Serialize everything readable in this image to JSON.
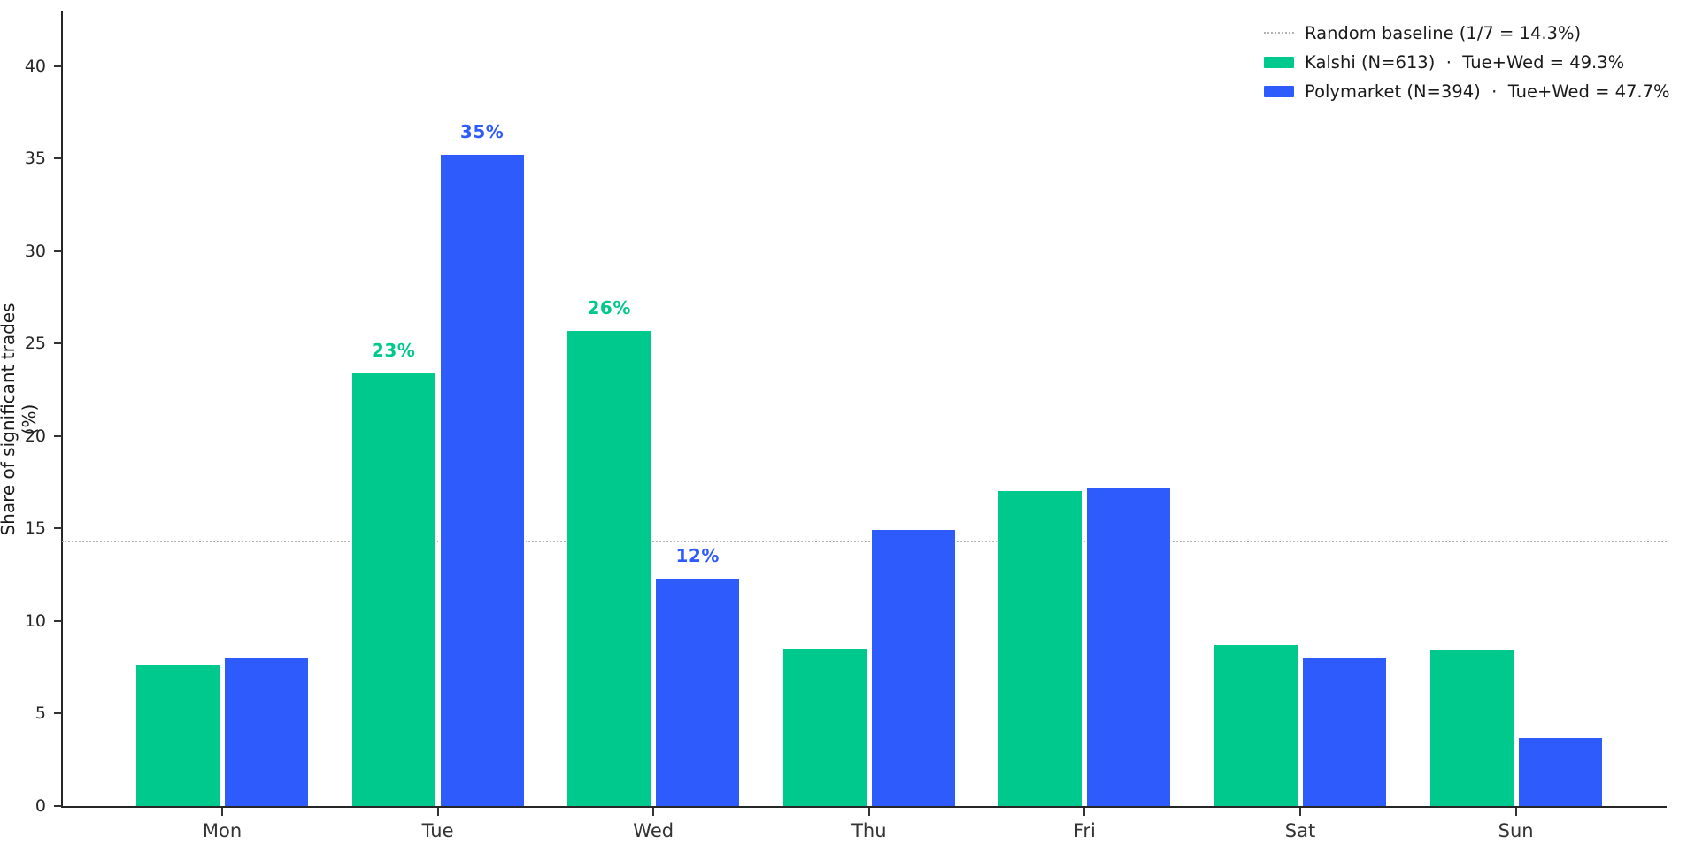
{
  "chart_data": {
    "type": "bar",
    "title": "",
    "xlabel": "",
    "ylabel": "Share of significant trades (%)",
    "categories": [
      "Mon",
      "Tue",
      "Wed",
      "Thu",
      "Fri",
      "Sat",
      "Sun"
    ],
    "series": [
      {
        "name": "Kalshi (N=613)  ·  Tue+Wed = 49.3%",
        "color": "#00c98d",
        "values": [
          7.7,
          23.5,
          25.8,
          8.6,
          17.1,
          8.8,
          8.5
        ]
      },
      {
        "name": "Polymarket (N=394)  ·  Tue+Wed = 47.7%",
        "color": "#2e5bfb",
        "values": [
          8.1,
          35.3,
          12.4,
          15.0,
          17.3,
          8.1,
          3.8
        ]
      }
    ],
    "bar_labels": [
      {
        "series": 0,
        "category": "Tue",
        "text": "23%"
      },
      {
        "series": 1,
        "category": "Tue",
        "text": "35%"
      },
      {
        "series": 0,
        "category": "Wed",
        "text": "26%"
      },
      {
        "series": 1,
        "category": "Wed",
        "text": "12%"
      }
    ],
    "baseline": {
      "value": 14.3,
      "label": "Random baseline (1/7 = 14.3%)",
      "color": "#b3b3b3",
      "style": "dotted"
    },
    "ylim": [
      0,
      43
    ],
    "yticks": [
      0,
      5,
      10,
      15,
      20,
      25,
      30,
      35,
      40
    ],
    "grid": false,
    "legend_position": "upper-right",
    "axis_color": "#262626"
  }
}
